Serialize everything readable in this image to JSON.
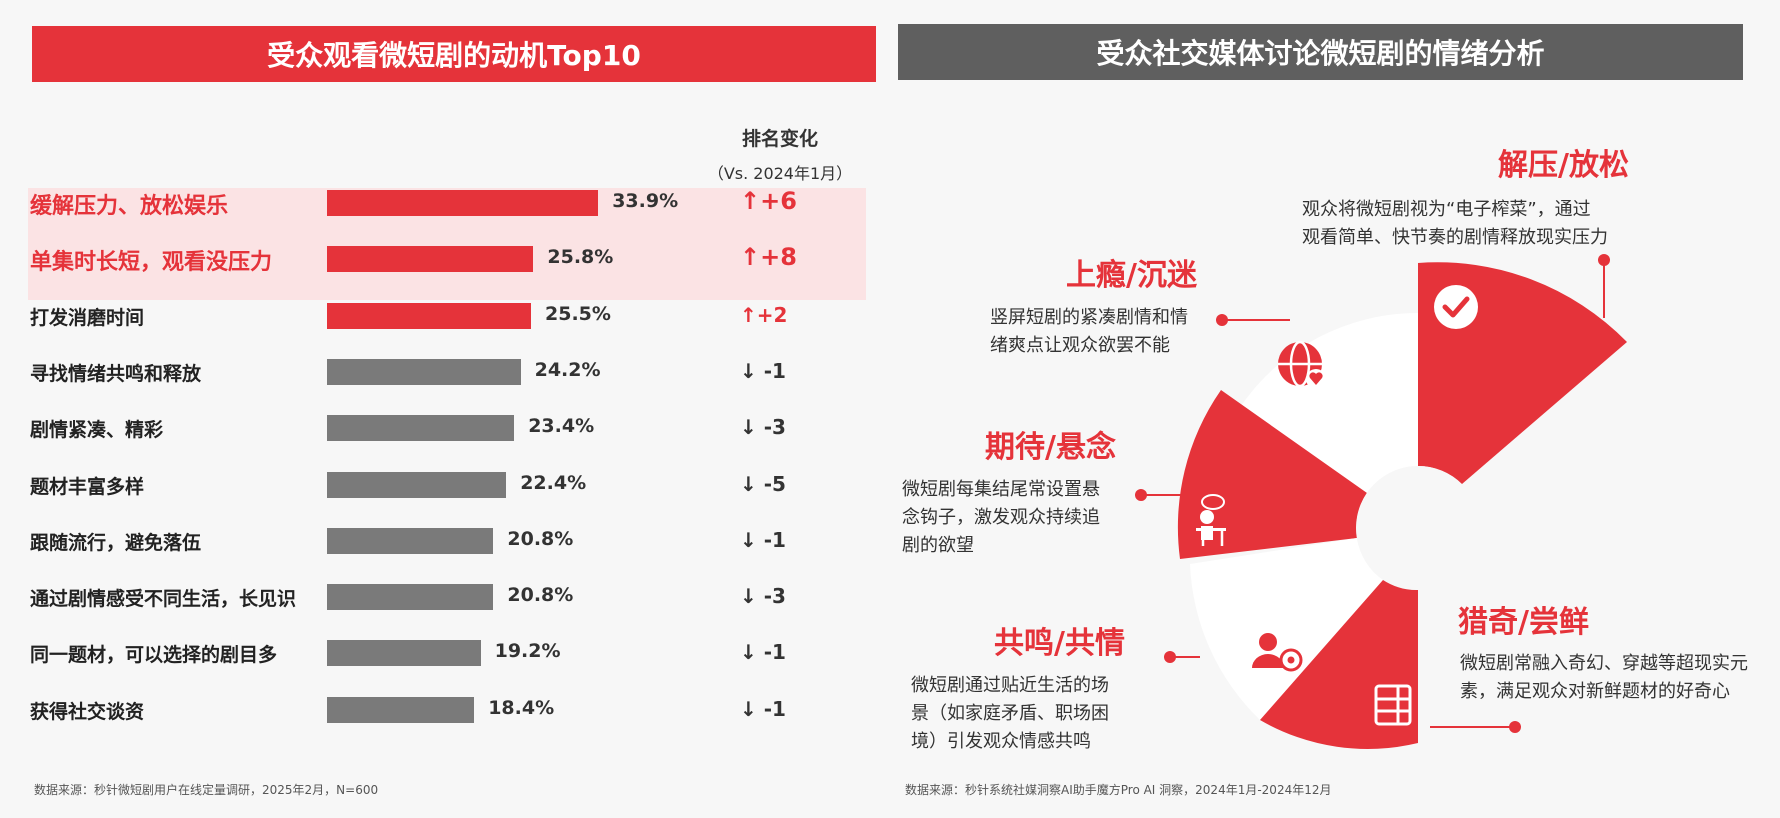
{
  "left": {
    "title": "受众观看微短剧的动机Top10",
    "rank_header": "排名变化",
    "rank_subheader": "（Vs. 2024年1月）",
    "source": "数据来源：秒针微短剧用户在线定量调研，2025年2月，N=600"
  },
  "right": {
    "title": "受众社交媒体讨论微短剧的情绪分析",
    "source": "数据来源：秒针系统社媒洞察AI助手魔方Pro AI 洞察，2024年1月-2024年12月",
    "emotions": [
      {
        "title": "解压/放松",
        "desc1": "观众将微短剧视为“电子榨菜”，通过",
        "desc2": "观看简单、快节奏的剧情释放现实压力",
        "desc3": ""
      },
      {
        "title": "上瘾/沉迷",
        "desc1": "竖屏短剧的紧凑剧情和情",
        "desc2": "绪爽点让观众欲罢不能",
        "desc3": ""
      },
      {
        "title": "期待/悬念",
        "desc1": "微短剧每集结尾常设置悬",
        "desc2": "念钩子，激发观众持续追",
        "desc3": "剧的欲望"
      },
      {
        "title": "共鸣/共情",
        "desc1": "微短剧通过贴近生活的场",
        "desc2": "景（如家庭矛盾、职场困",
        "desc3": "境）引发观众情感共鸣"
      },
      {
        "title": "猎奇/尝鲜",
        "desc1": "微短剧常融入奇幻、穿越等超现实元",
        "desc2": "素，满足观众对新鲜题材的好奇心",
        "desc3": ""
      }
    ]
  },
  "colors": {
    "accent": "#e5333a",
    "gray_bar": "#7a7a7a",
    "highlight": "#fbe3e4",
    "banner_gray": "#5f5f5f"
  },
  "chart_data": {
    "type": "bar",
    "orientation": "horizontal",
    "categories": [
      "缓解压力、放松娱乐",
      "单集时长短，观看没压力",
      "打发消磨时间",
      "寻找情绪共鸣和释放",
      "剧情紧凑、精彩",
      "题材丰富多样",
      "跟随流行，避免落伍",
      "通过剧情感受不同生活，长见识",
      "同一题材，可以选择的剧目多",
      "获得社交谈资"
    ],
    "values": [
      33.9,
      25.8,
      25.5,
      24.2,
      23.4,
      22.4,
      20.8,
      20.8,
      19.2,
      18.4
    ],
    "value_labels": [
      "33.9%",
      "25.8%",
      "25.5%",
      "24.2%",
      "23.4%",
      "22.4%",
      "20.8%",
      "20.8%",
      "19.2%",
      "18.4%"
    ],
    "rank_change": [
      "↑+6",
      "↑+8",
      "↑+2",
      "↓ -1",
      "↓ -3",
      "↓ -5",
      "↓ -1",
      "↓ -3",
      "↓ -1",
      "↓ -1"
    ],
    "title": "受众观看微短剧的动机Top10",
    "xlabel": "",
    "ylabel": ""
  }
}
